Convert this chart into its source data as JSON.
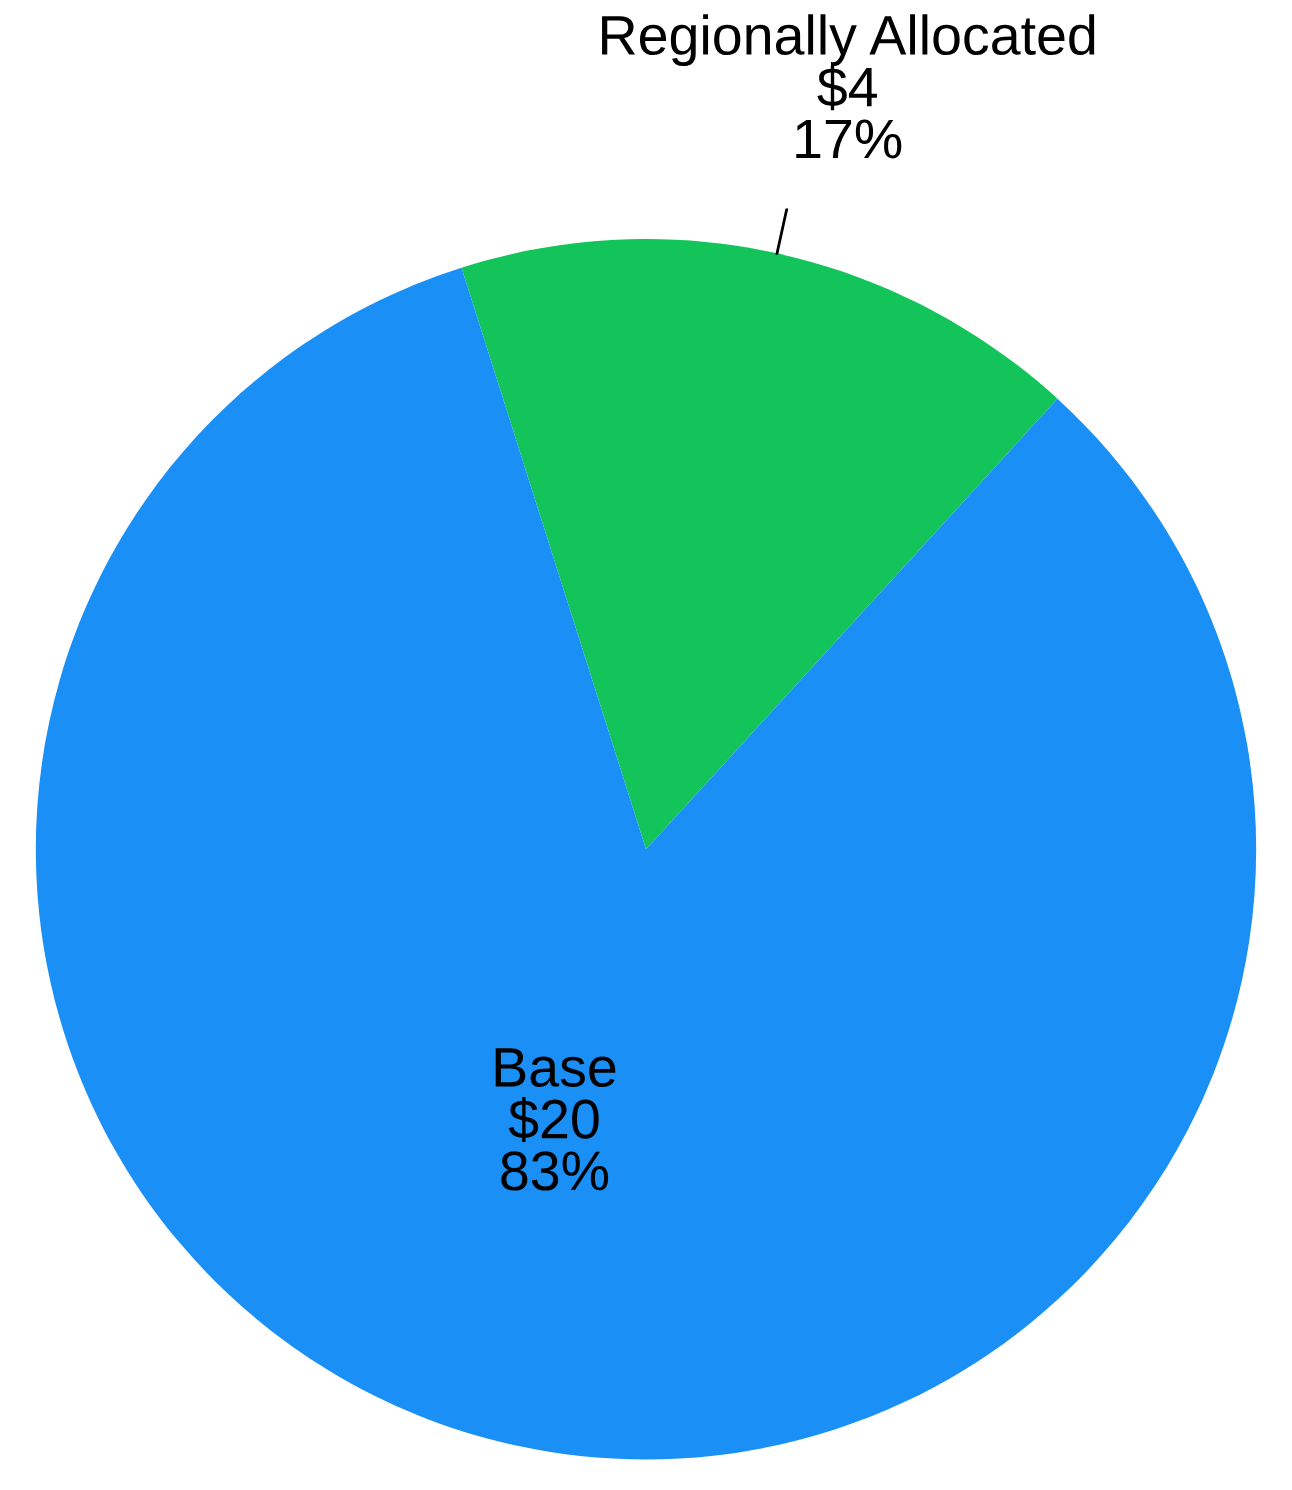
{
  "chart_data": {
    "type": "pie",
    "categories": [
      "Regionally Allocated",
      "Base"
    ],
    "values": [
      4,
      20
    ],
    "colors": [
      "#12c45a",
      "#1a8ff5"
    ],
    "value_labels": [
      "$4\n17%",
      "$20\n83%"
    ]
  }
}
